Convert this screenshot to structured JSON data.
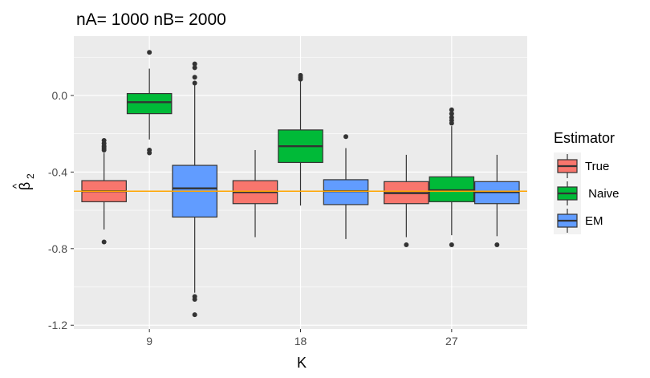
{
  "chart_data": {
    "type": "boxplot",
    "title": "nA= 1000 nB= 2000",
    "xlabel": "K",
    "ylabel": "β̂₂",
    "ylabel_base": "β",
    "ylabel_hat": "^",
    "ylabel_sub": "2",
    "categories": [
      "9",
      "18",
      "27"
    ],
    "ylim": [
      -1.22,
      0.31
    ],
    "yticks": [
      -1.2,
      -0.8,
      -0.4,
      0.0
    ],
    "ytick_labels": [
      "-1.2",
      "-0.8",
      "-0.4",
      "0.0"
    ],
    "reference_line": {
      "y": -0.5,
      "color": "#FFA500"
    },
    "legend": {
      "title": "Estimator",
      "placement": "right",
      "entries": [
        "True",
        " Naive",
        "EM"
      ]
    },
    "series": [
      {
        "name": "True",
        "color": "#F8766D",
        "boxes": [
          {
            "category": "9",
            "whisker_low": -0.7,
            "q1": -0.555,
            "median": -0.5,
            "q3": -0.445,
            "whisker_high": -0.3,
            "outliers": [
              -0.235,
              -0.25,
              -0.265,
              -0.275,
              -0.285,
              -0.765
            ]
          },
          {
            "category": "18",
            "whisker_low": -0.74,
            "q1": -0.565,
            "median": -0.505,
            "q3": -0.445,
            "whisker_high": -0.285,
            "outliers": []
          },
          {
            "category": "27",
            "whisker_low": -0.74,
            "q1": -0.565,
            "median": -0.51,
            "q3": -0.45,
            "whisker_high": -0.31,
            "outliers": [
              -0.78
            ]
          }
        ]
      },
      {
        "name": " Naive",
        "color": "#00BA38",
        "boxes": [
          {
            "category": "9",
            "whisker_low": -0.23,
            "q1": -0.095,
            "median": -0.035,
            "q3": 0.01,
            "whisker_high": 0.14,
            "outliers": [
              0.225,
              -0.285,
              -0.3
            ]
          },
          {
            "category": "18",
            "whisker_low": -0.575,
            "q1": -0.35,
            "median": -0.265,
            "q3": -0.18,
            "whisker_high": 0.075,
            "outliers": [
              0.085,
              0.095,
              0.105
            ]
          },
          {
            "category": "27",
            "whisker_low": -0.73,
            "q1": -0.555,
            "median": -0.495,
            "q3": -0.425,
            "whisker_high": -0.16,
            "outliers": [
              -0.075,
              -0.095,
              -0.115,
              -0.13,
              -0.145,
              -0.78
            ]
          }
        ]
      },
      {
        "name": "EM",
        "color": "#619CFF",
        "boxes": [
          {
            "category": "9",
            "whisker_low": -1.03,
            "q1": -0.635,
            "median": -0.485,
            "q3": -0.365,
            "whisker_high": 0.055,
            "outliers": [
              0.165,
              0.145,
              0.065,
              0.095,
              -1.05,
              -1.065,
              -1.145
            ]
          },
          {
            "category": "18",
            "whisker_low": -0.75,
            "q1": -0.57,
            "median": -0.5,
            "q3": -0.44,
            "whisker_high": -0.275,
            "outliers": [
              -0.215
            ]
          },
          {
            "category": "27",
            "whisker_low": -0.735,
            "q1": -0.565,
            "median": -0.505,
            "q3": -0.45,
            "whisker_high": -0.31,
            "outliers": [
              -0.78
            ]
          }
        ]
      }
    ]
  }
}
